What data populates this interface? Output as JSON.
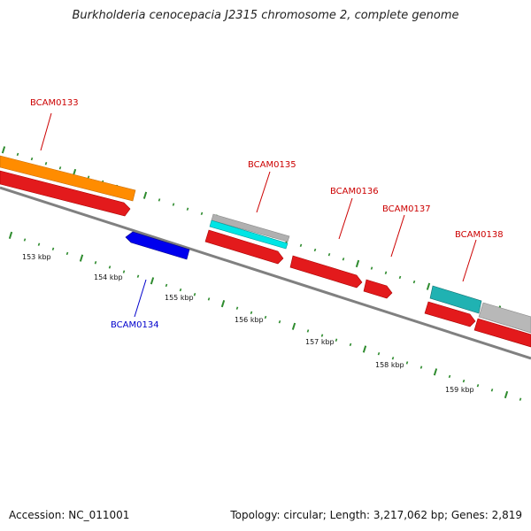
{
  "title": "Burkholderia cenocepacia J2315 chromosome 2, complete genome",
  "footer": {
    "accession": "Accession: NC_011001",
    "stats": "Topology: circular; Length: 3,217,062 bp; Genes: 2,819"
  },
  "colors": {
    "backbone": "#808080",
    "tick": "#2e8b2e",
    "forward_cds": "#e31a1c",
    "reverse_cds": "#0000ee",
    "orange": "#ff8c00",
    "cyan": "#00e5e5",
    "teal": "#20b2b2",
    "gray": "#b0b0b0",
    "label_red": "#cc0000",
    "label_blue": "#0000cc"
  },
  "kbp_ticks": [
    {
      "label": "153 kbp"
    },
    {
      "label": "154 kbp"
    },
    {
      "label": "155 kbp"
    },
    {
      "label": "156 kbp"
    },
    {
      "label": "157 kbp"
    },
    {
      "label": "158 kbp"
    },
    {
      "label": "159 kbp"
    }
  ],
  "gene_labels": [
    {
      "text": "BCAM0133",
      "color": "#cc0000"
    },
    {
      "text": "BCAM0134",
      "color": "#0000cc"
    },
    {
      "text": "BCAM0135",
      "color": "#cc0000"
    },
    {
      "text": "BCAM0136",
      "color": "#cc0000"
    },
    {
      "text": "BCAM0137",
      "color": "#cc0000"
    },
    {
      "text": "BCAM0138",
      "color": "#cc0000"
    }
  ]
}
